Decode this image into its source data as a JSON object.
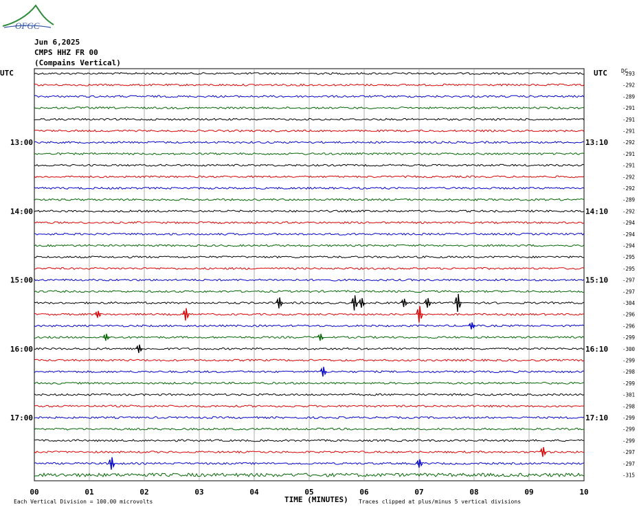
{
  "header": {
    "logo_text": "OFGC",
    "date": "Jun 6,2025",
    "station": "CMPS HHZ FR 00",
    "location": "(Compains Vertical)"
  },
  "labels": {
    "left_utc": "UTC",
    "right_utc": "UTC",
    "dc": "DC",
    "x_axis_title": "TIME (MINUTES)",
    "scale_note": "Each Vertical Division =  100.00 microvolts",
    "clip_note": "Traces clipped at plus/minus 5 vertical divisions"
  },
  "chart_data": {
    "type": "line",
    "xlabel": "TIME (MINUTES)",
    "xlim": [
      0,
      10
    ],
    "x_ticks": [
      "00",
      "01",
      "02",
      "03",
      "04",
      "05",
      "06",
      "07",
      "08",
      "09",
      "10"
    ],
    "trace_colors": [
      "#000000",
      "#dd0000",
      "#0000cc",
      "#006600"
    ],
    "trace_count": 36,
    "left_time_labels": [
      {
        "trace": 6,
        "label": "13:00"
      },
      {
        "trace": 12,
        "label": "14:00"
      },
      {
        "trace": 18,
        "label": "15:00"
      },
      {
        "trace": 24,
        "label": "16:00"
      },
      {
        "trace": 30,
        "label": "17:00"
      }
    ],
    "right_time_labels": [
      {
        "trace": 6,
        "label": "13:10"
      },
      {
        "trace": 12,
        "label": "14:10"
      },
      {
        "trace": 18,
        "label": "15:10"
      },
      {
        "trace": 24,
        "label": "16:10"
      },
      {
        "trace": 30,
        "label": "17:10"
      }
    ],
    "dc_offsets": [
      "-293",
      "-292",
      "-289",
      "-291",
      "-291",
      "-291",
      "-292",
      "-291",
      "-291",
      "-292",
      "-292",
      "-289",
      "-292",
      "-294",
      "-294",
      "-294",
      "-295",
      "-295",
      "-297",
      "-297",
      "-304",
      "-296",
      "-296",
      "-299",
      "-300",
      "-299",
      "-298",
      "-299",
      "-301",
      "-298",
      "-299",
      "-299",
      "-299",
      "-297",
      "-297",
      "-315"
    ],
    "events": [
      {
        "trace": 20,
        "minute": 4.45,
        "amplitude": 0.8
      },
      {
        "trace": 20,
        "minute": 5.82,
        "amplitude": 1.1
      },
      {
        "trace": 20,
        "minute": 5.95,
        "amplitude": 0.7
      },
      {
        "trace": 20,
        "minute": 6.72,
        "amplitude": 0.6
      },
      {
        "trace": 20,
        "minute": 7.15,
        "amplitude": 0.7
      },
      {
        "trace": 20,
        "minute": 7.7,
        "amplitude": 1.3
      },
      {
        "trace": 21,
        "minute": 1.15,
        "amplitude": 0.5
      },
      {
        "trace": 21,
        "minute": 2.75,
        "amplitude": 0.9
      },
      {
        "trace": 21,
        "minute": 7.0,
        "amplitude": 1.2
      },
      {
        "trace": 22,
        "minute": 7.95,
        "amplitude": 0.5
      },
      {
        "trace": 23,
        "minute": 1.3,
        "amplitude": 0.5
      },
      {
        "trace": 23,
        "minute": 5.2,
        "amplitude": 0.5
      },
      {
        "trace": 24,
        "minute": 1.9,
        "amplitude": 0.6
      },
      {
        "trace": 26,
        "minute": 5.25,
        "amplitude": 0.7
      },
      {
        "trace": 33,
        "minute": 9.25,
        "amplitude": 0.7
      },
      {
        "trace": 34,
        "minute": 1.4,
        "amplitude": 0.9
      },
      {
        "trace": 34,
        "minute": 7.0,
        "amplitude": 0.6
      }
    ],
    "grid": true
  }
}
